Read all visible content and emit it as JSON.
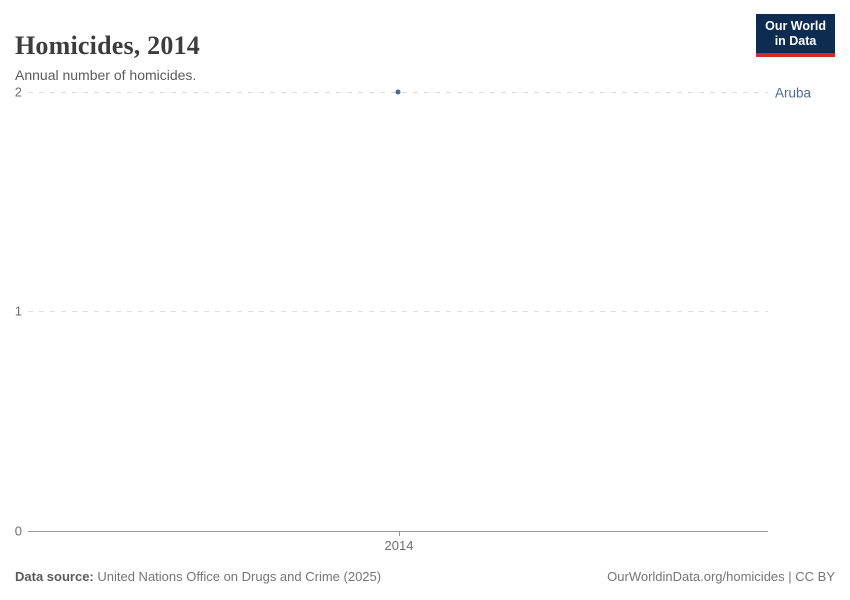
{
  "header": {
    "title": "Homicides, 2014",
    "subtitle": "Annual number of homicides."
  },
  "logo": {
    "line1": "Our World",
    "line2": "in Data"
  },
  "chart_data": {
    "type": "scatter",
    "title": "Homicides, 2014",
    "subtitle": "Annual number of homicides.",
    "series": [
      {
        "name": "Aruba",
        "color": "#4c6a9c",
        "points": [
          {
            "x": 2014,
            "y": 2
          }
        ]
      }
    ],
    "x_ticks": [
      2014
    ],
    "y_ticks": [
      0,
      1,
      2
    ],
    "ylim": [
      0,
      2
    ],
    "grid": "horizontal-dashed",
    "legend_position": "entity-label-right"
  },
  "axis": {
    "y_tick_labels": [
      "2",
      "1",
      "0"
    ],
    "x_tick_label": "2014"
  },
  "footer": {
    "source_label": "Data source:",
    "source_text": " United Nations Office on Drugs and Crime (2025)",
    "rights": "OurWorldinData.org/homicides | CC BY"
  },
  "colors": {
    "accent": "#4c6a9c",
    "title": "#3d3d3d",
    "subtitle": "#5b5b5b",
    "grid": "#dddddd",
    "axis": "#999999",
    "logo_bg": "#0d2c51",
    "logo_red": "#d42b21"
  }
}
